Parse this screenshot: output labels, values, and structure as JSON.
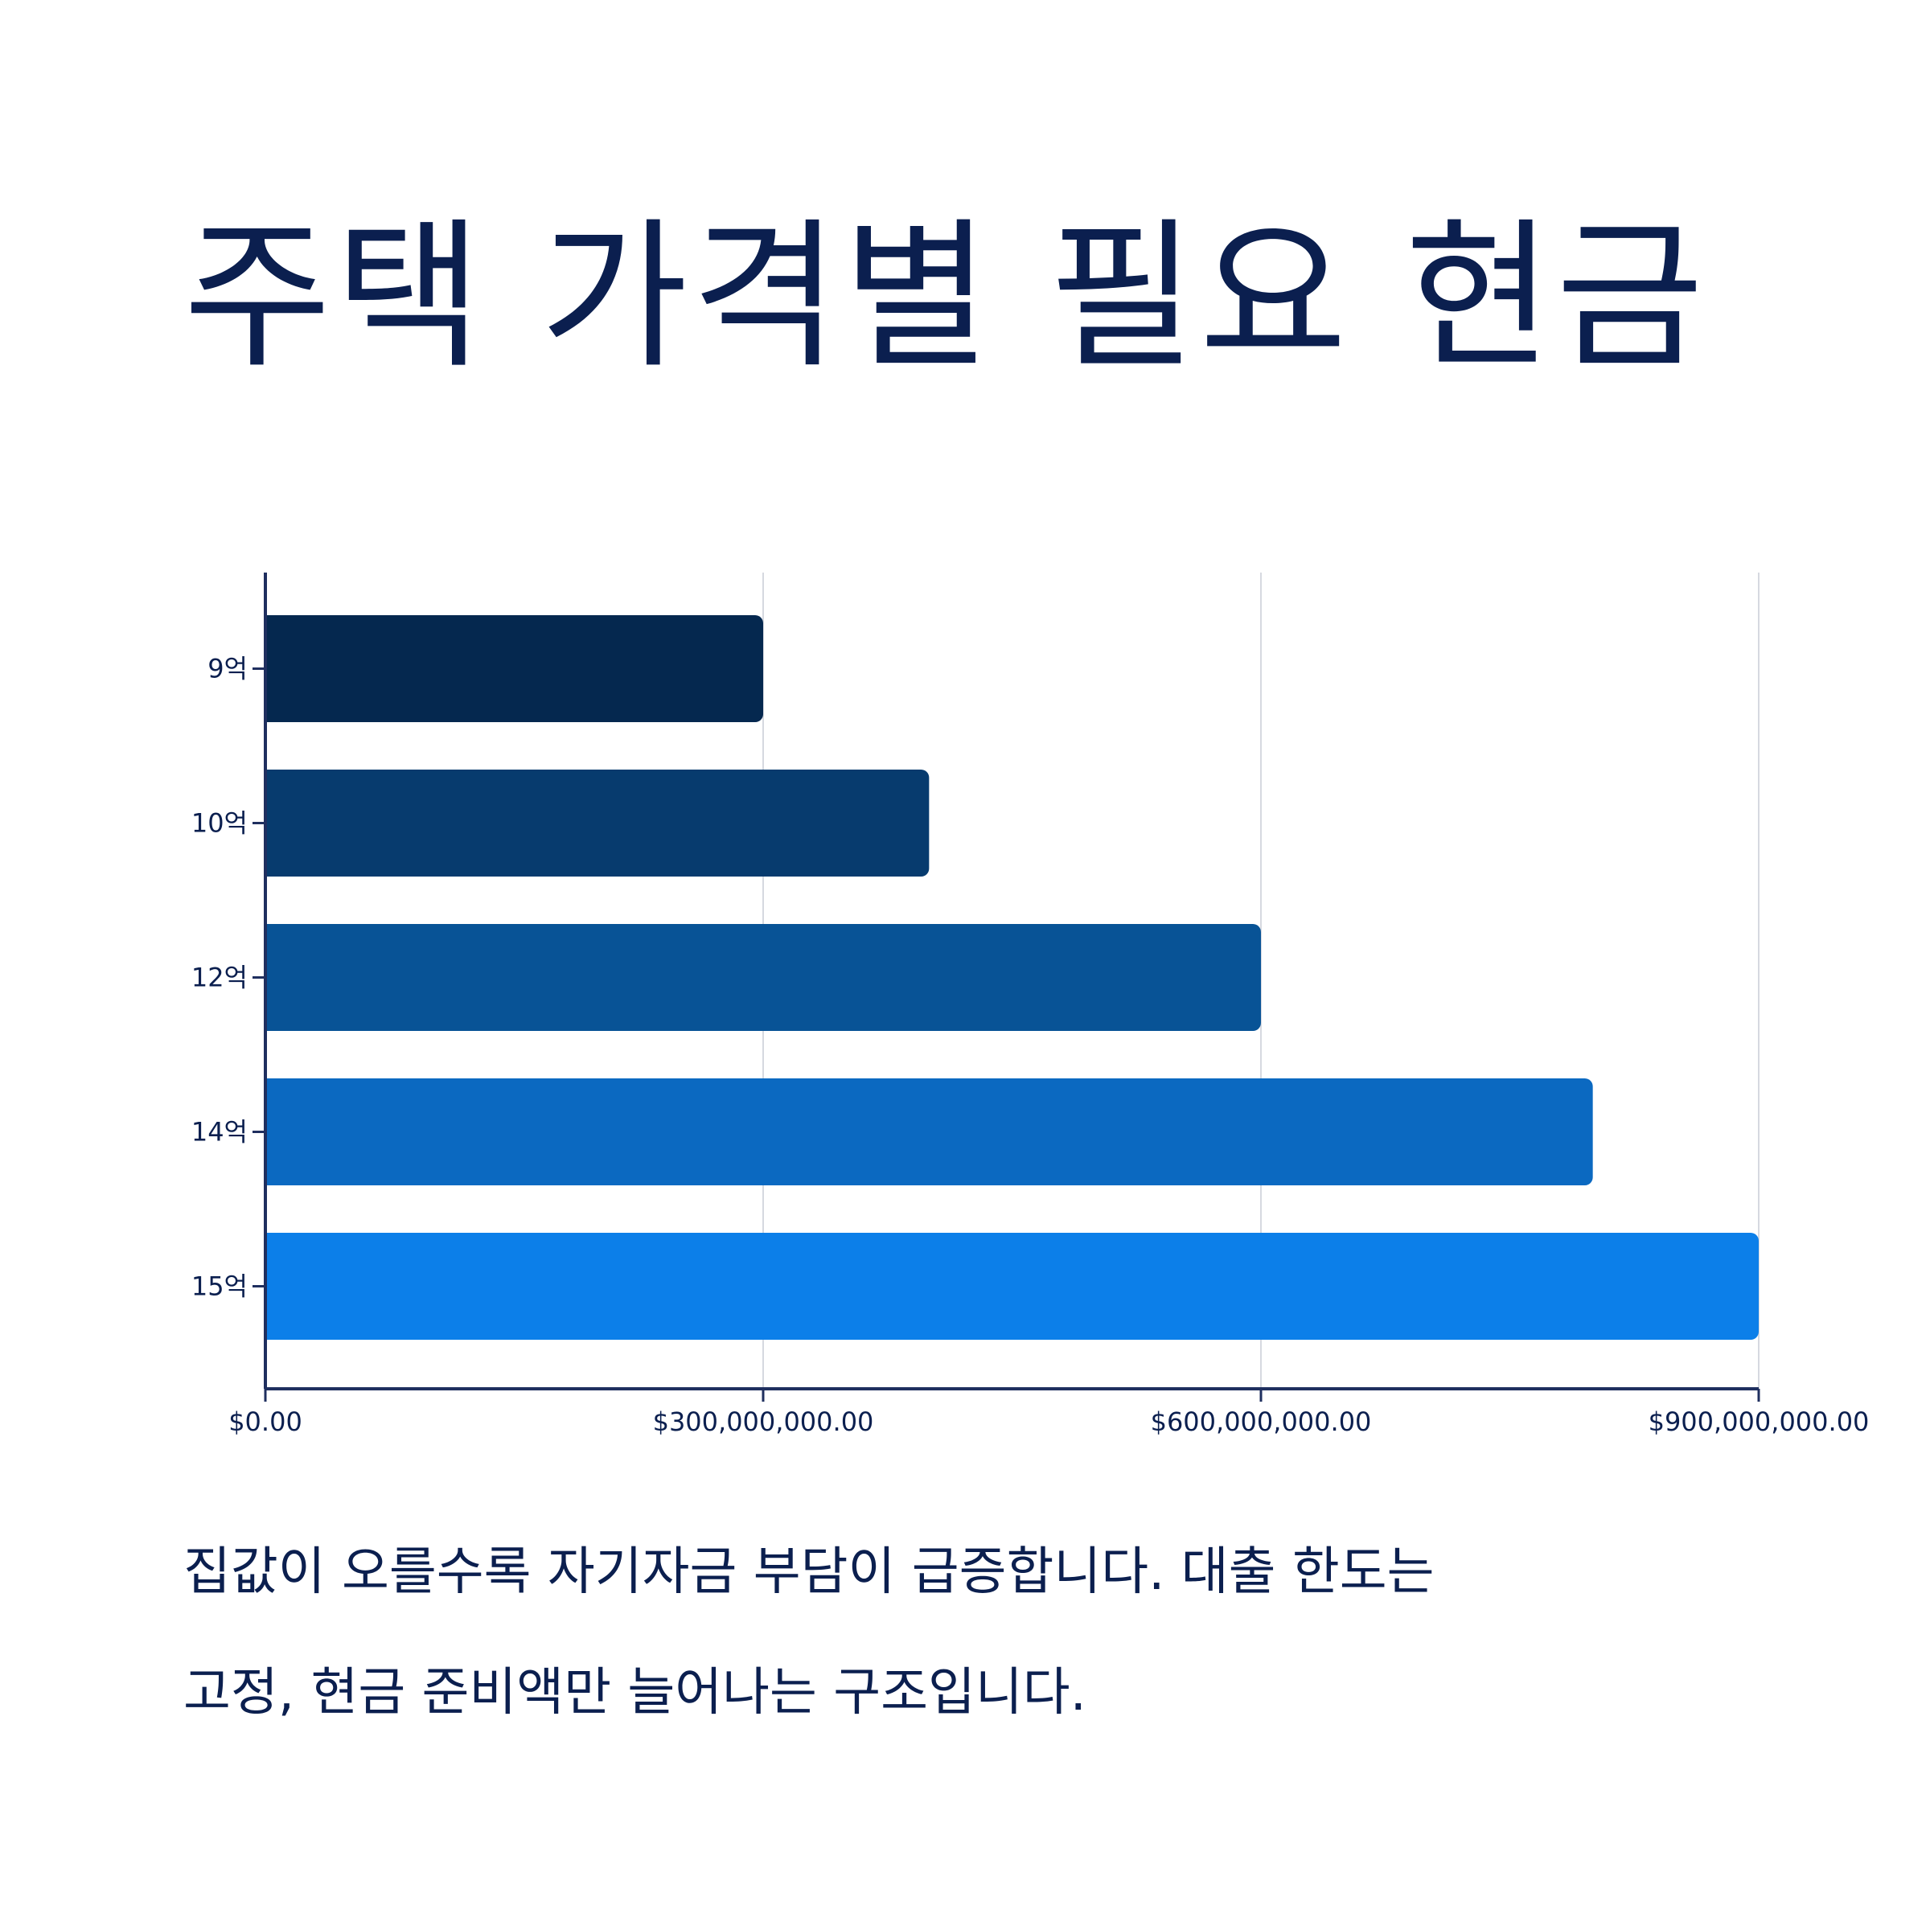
{
  "title": "주택 가격별 필요 현금",
  "caption": [
    "집값이 오를수록 자기자금 부담이 급증합니다. 대출 한도는",
    "고정, 현금 준비액만 늘어나는 구조입니다."
  ],
  "chart_data": {
    "type": "bar",
    "orientation": "horizontal",
    "categories": [
      "9억",
      "10억",
      "12억",
      "14억",
      "15억"
    ],
    "values": [
      300000000,
      400000000,
      600000000,
      800000000,
      900000000
    ],
    "xlim": [
      0,
      900000000
    ],
    "xticks": [
      0,
      300000000,
      600000000,
      900000000
    ],
    "xtick_labels": [
      "$0.00",
      "$300,000,000.00",
      "$600,000,000.00",
      "$900,000,000.00"
    ],
    "grid": "vertical",
    "legend": "none",
    "colors": [
      "#05284f",
      "#073b6e",
      "#085396",
      "#0b69c1",
      "#0c7fe9"
    ],
    "axis_color": "#1f2f5f",
    "grid_color": "#d6d9e0"
  }
}
